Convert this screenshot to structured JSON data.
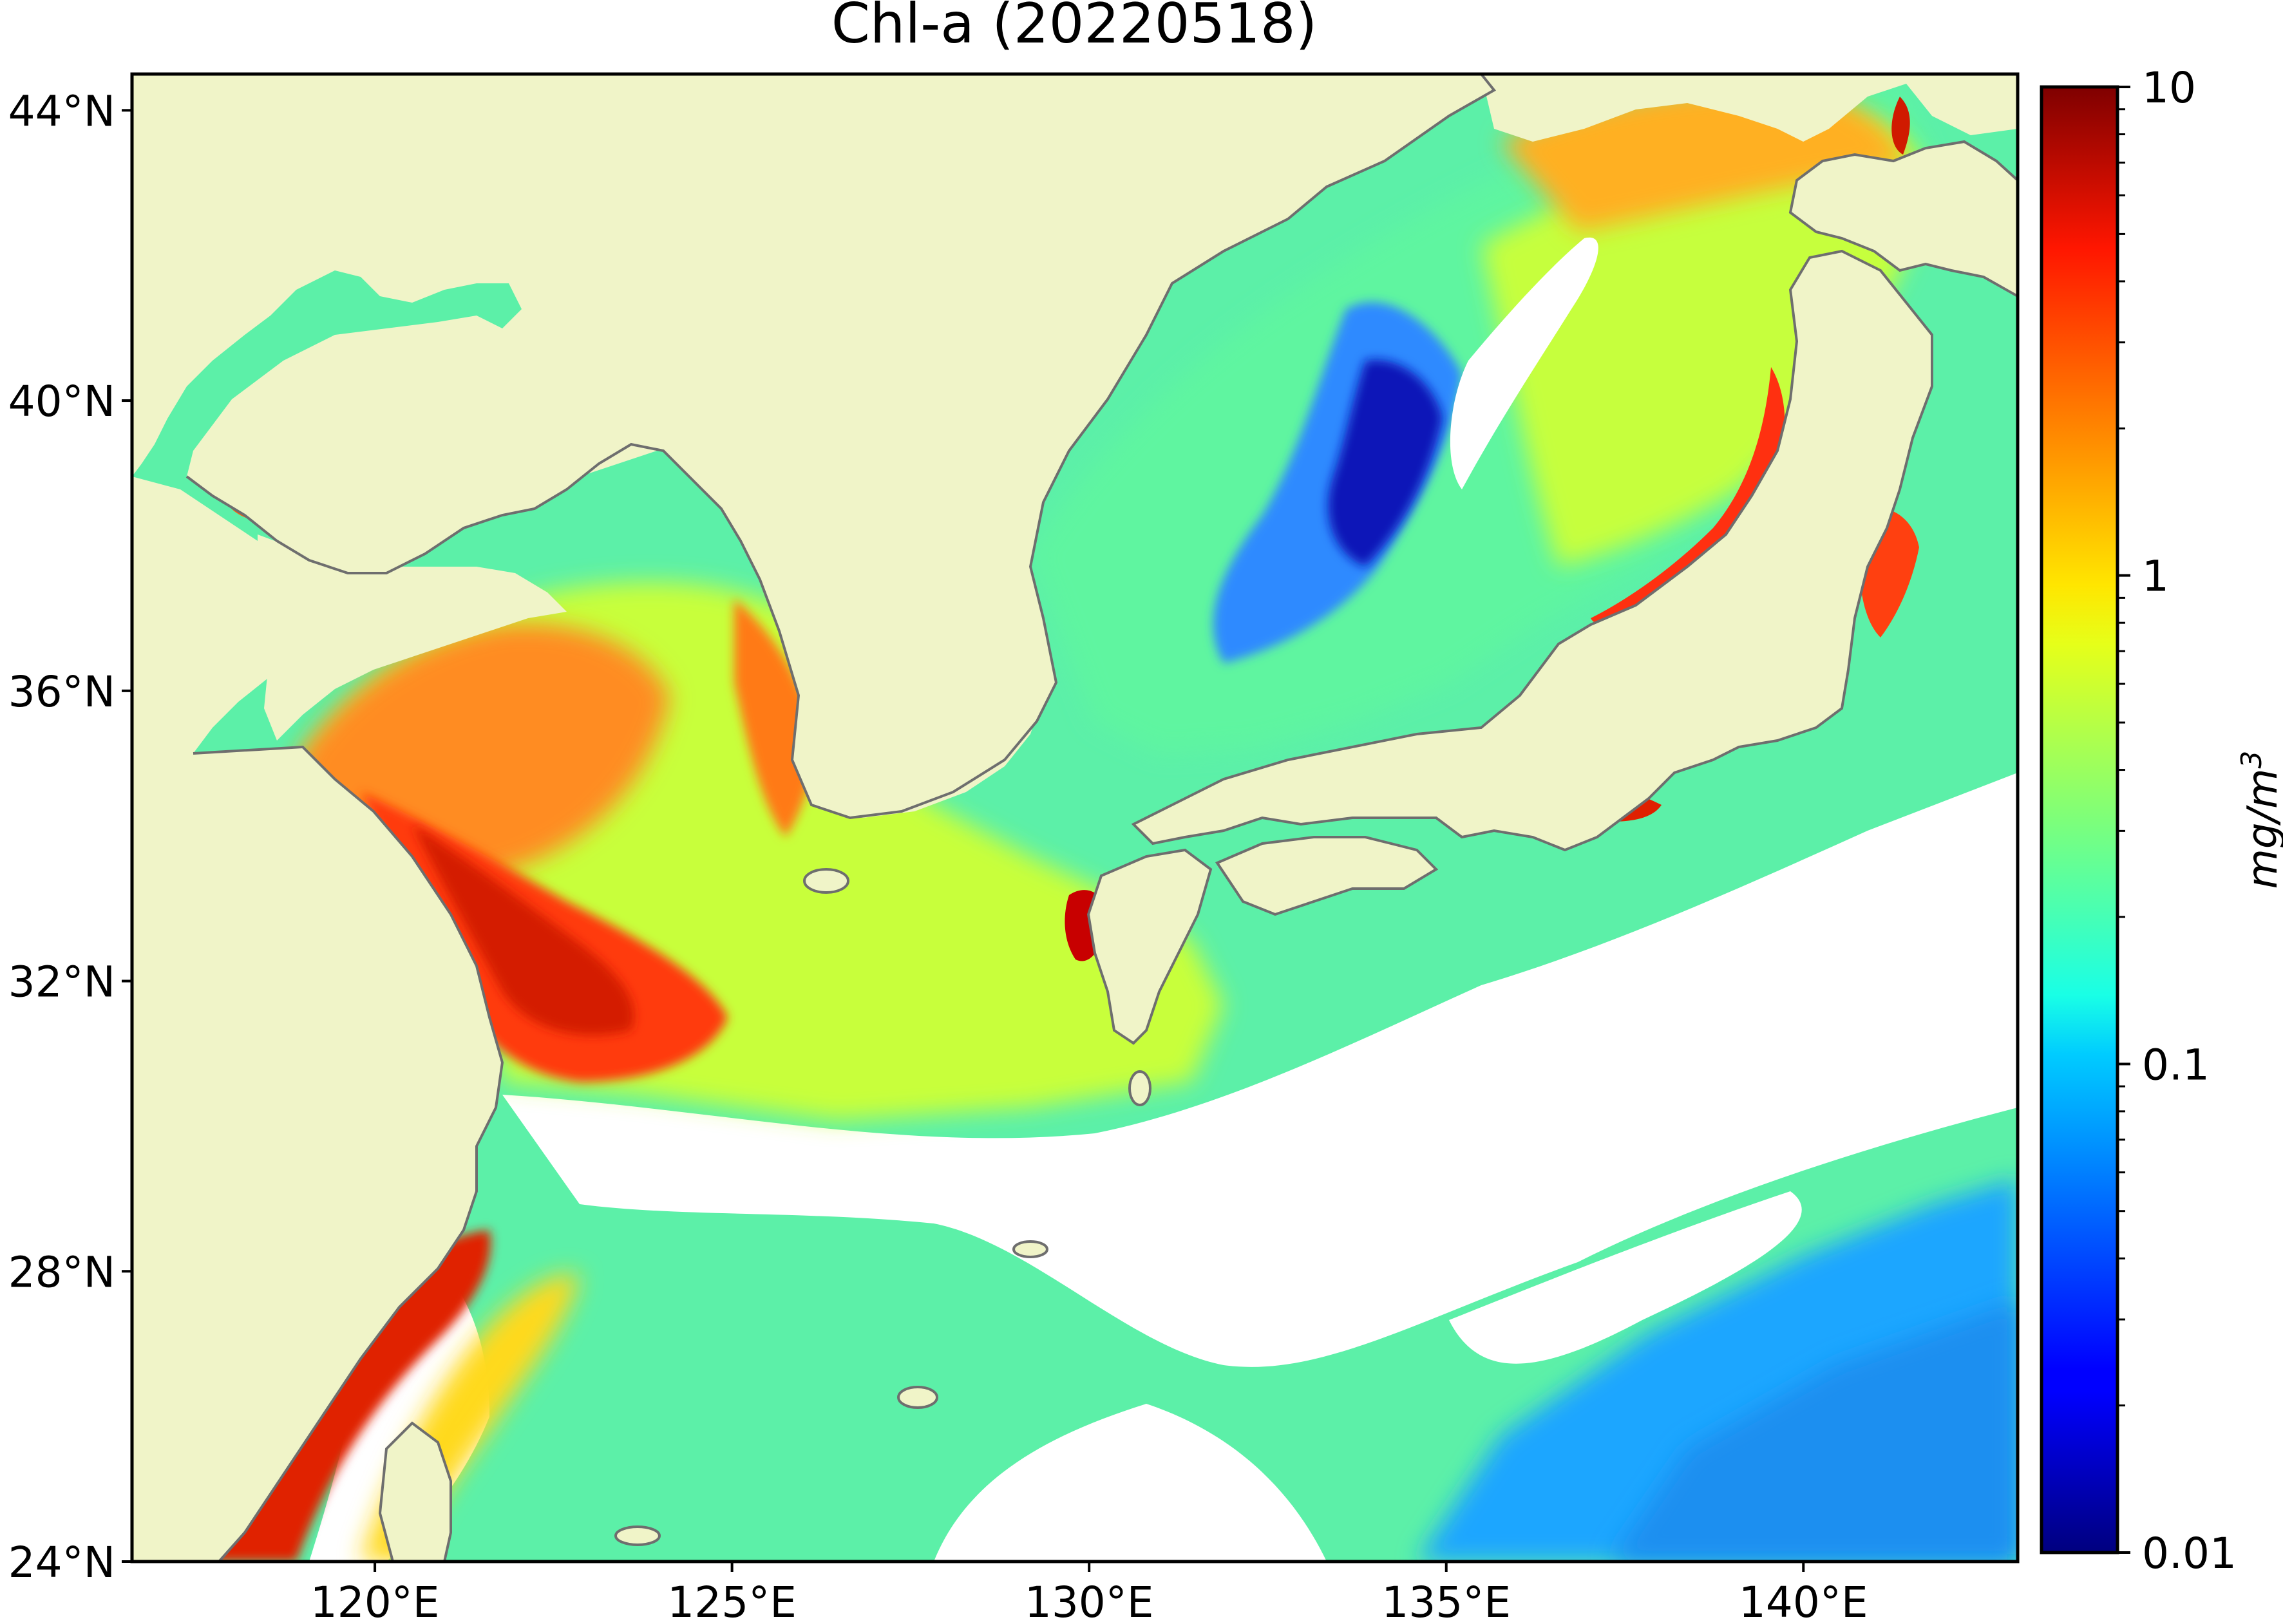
{
  "title": "Chl-a (20220518)",
  "map": {
    "lon_range": [
      116.6,
      143.0
    ],
    "lat_range": [
      24.0,
      44.5
    ],
    "lon_ticks": [
      {
        "value": 120,
        "label": "120°E"
      },
      {
        "value": 125,
        "label": "125°E"
      },
      {
        "value": 130,
        "label": "130°E"
      },
      {
        "value": 135,
        "label": "135°E"
      },
      {
        "value": 140,
        "label": "140°E"
      }
    ],
    "lat_ticks": [
      {
        "value": 24,
        "label": "24°N"
      },
      {
        "value": 28,
        "label": "28°N"
      },
      {
        "value": 32,
        "label": "32°N"
      },
      {
        "value": 36,
        "label": "36°N"
      },
      {
        "value": 40,
        "label": "40°N"
      },
      {
        "value": 44,
        "label": "44°N"
      }
    ],
    "land_color": "#f0f4c8",
    "coast_color": "#6e6e6e",
    "nodata_color": "#ffffff"
  },
  "colorbar": {
    "scale": "log",
    "min": 0.01,
    "max": 10,
    "colormap": "jet",
    "ticks": [
      {
        "value": 0.01,
        "label": "0.01"
      },
      {
        "value": 0.1,
        "label": "0.1"
      },
      {
        "value": 1,
        "label": "1"
      },
      {
        "value": 10,
        "label": "10"
      }
    ],
    "unit_base": "mg/m",
    "unit_exp": "3"
  }
}
